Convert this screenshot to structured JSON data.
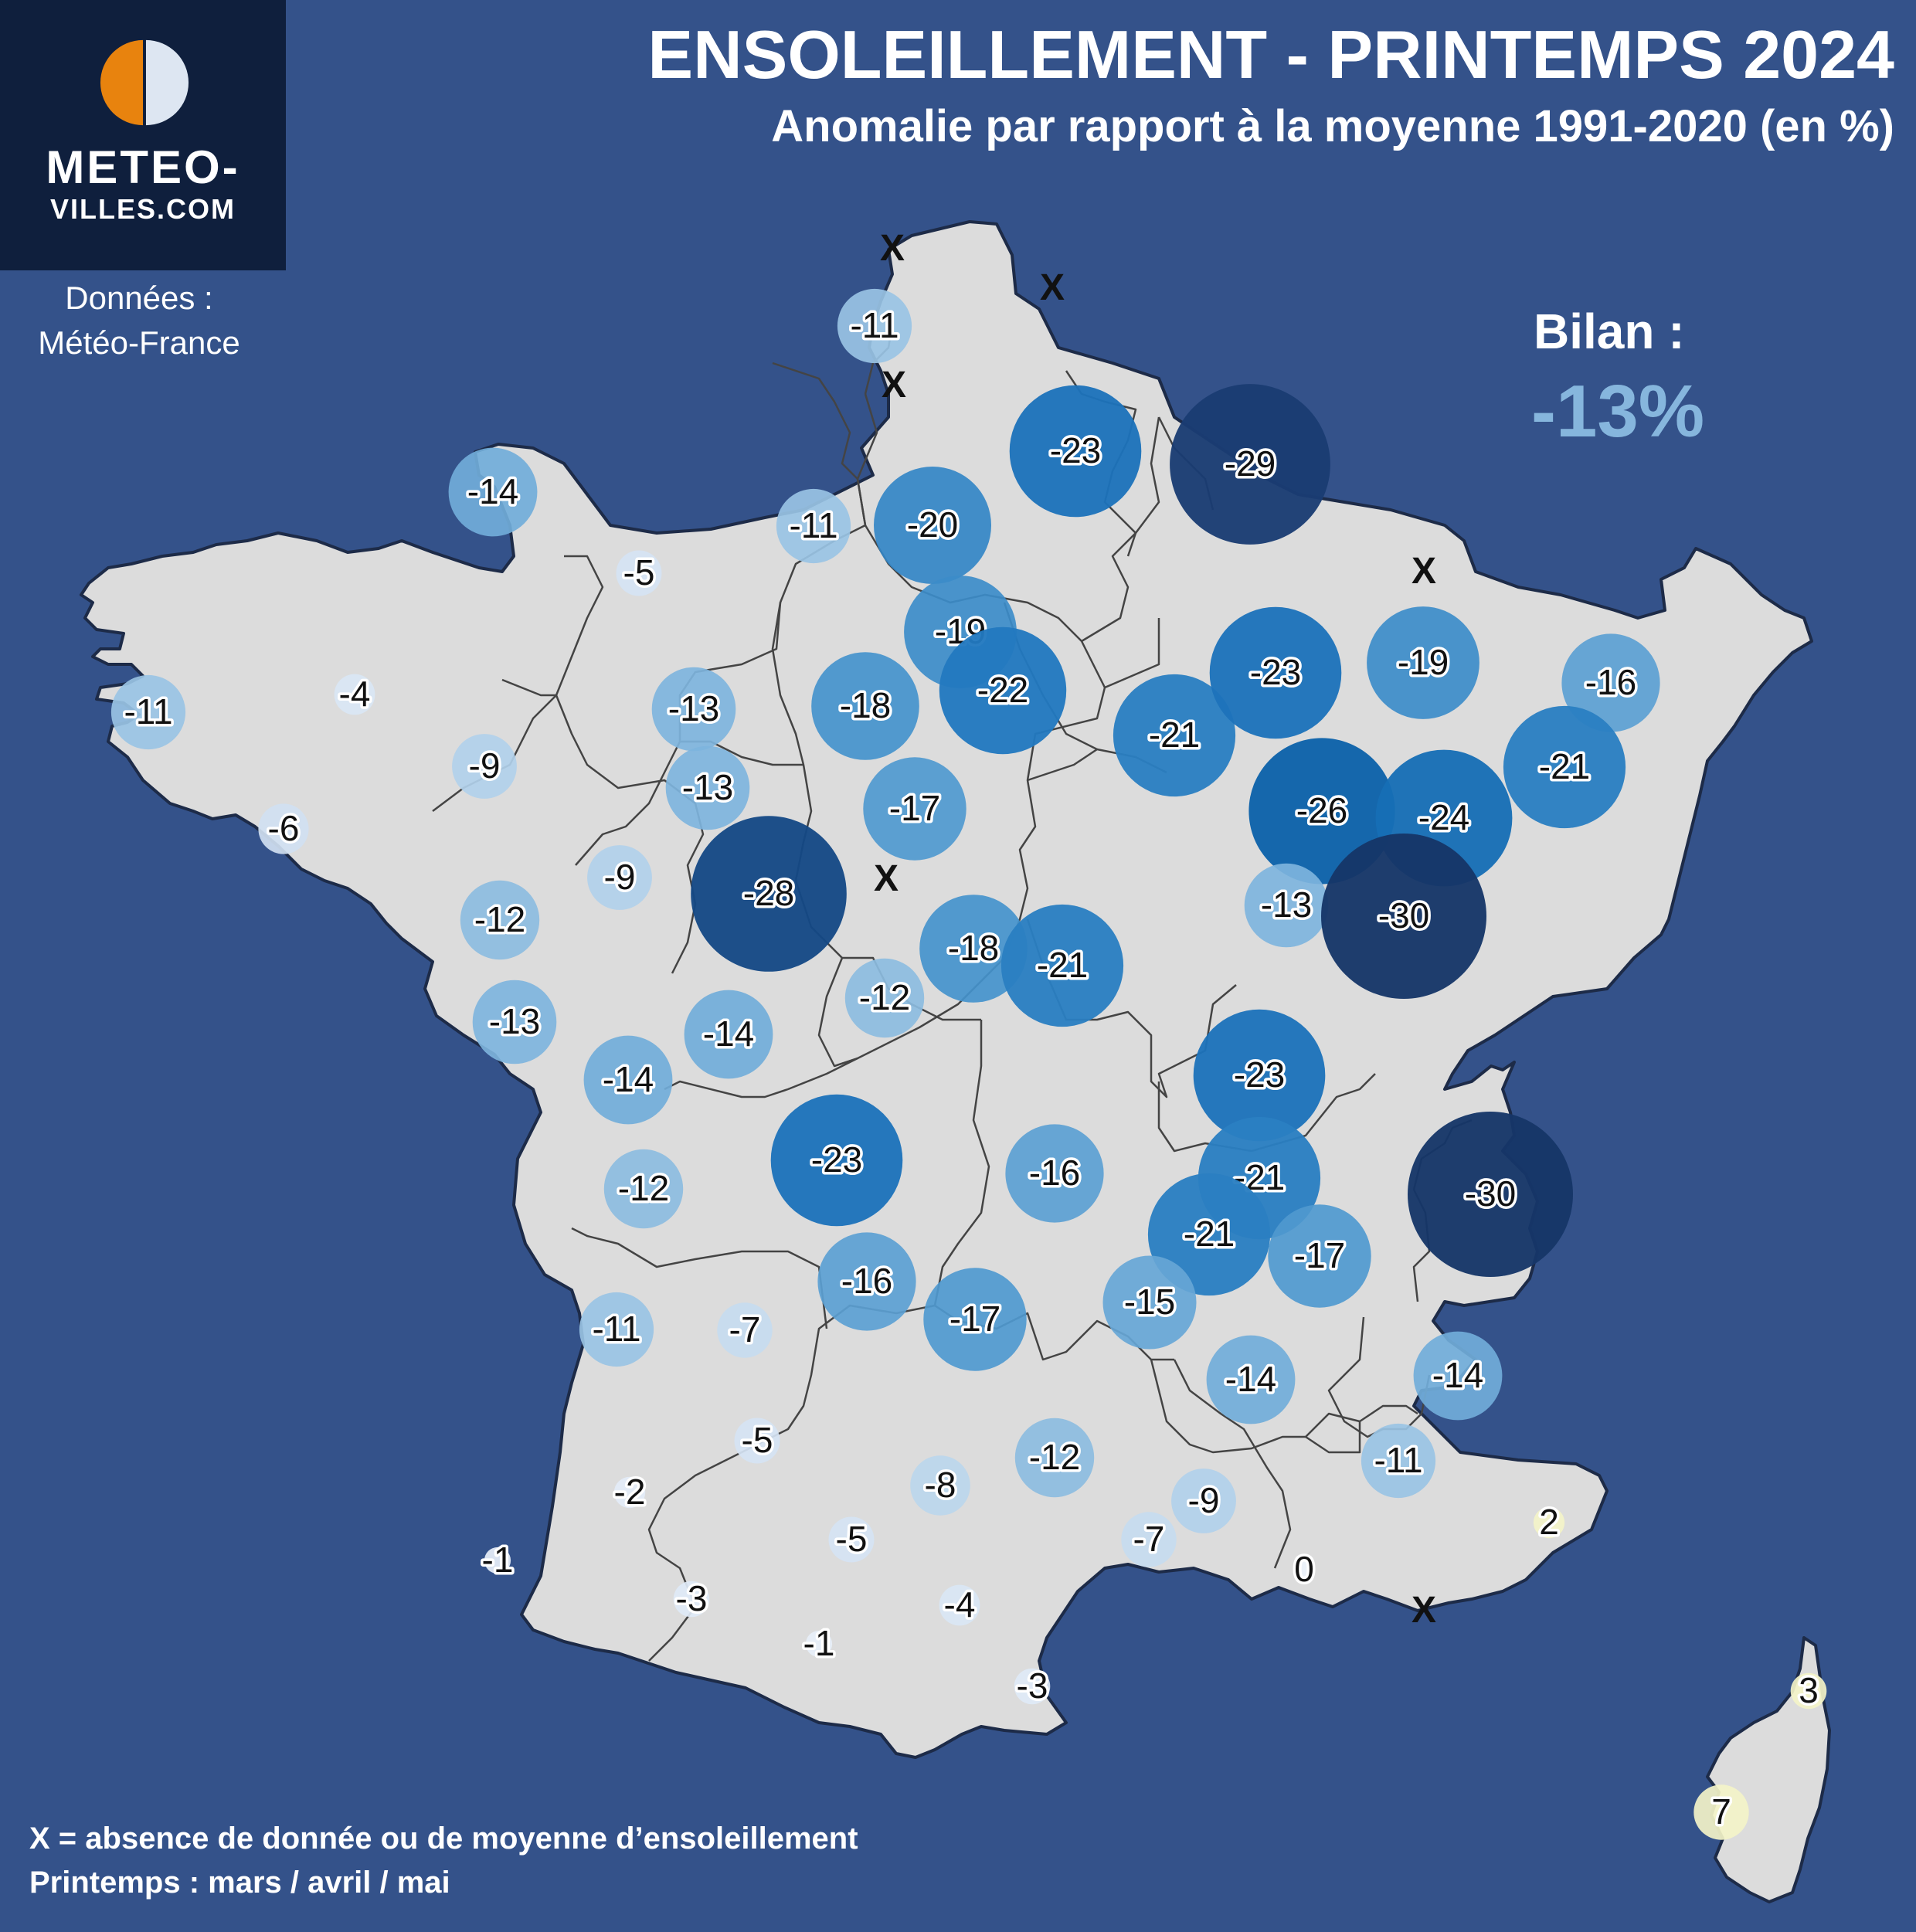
{
  "header": {
    "title": "ENSOLEILLEMENT - PRINTEMPS 2024",
    "subtitle": "Anomalie par rapport à la moyenne 1991-2020 (en %)"
  },
  "logo": {
    "line1": "METEO-",
    "line2": "VILLES.COM",
    "colors": {
      "orange": "#e8830e",
      "white": "#dde6f2",
      "box": "#0f1f3d"
    }
  },
  "source": {
    "line1": "Données :",
    "line2": "Météo-France"
  },
  "summary": {
    "label": "Bilan :",
    "value": "-13%",
    "value_color": "#86b6dd"
  },
  "footer": {
    "missing_note": "X = absence de donnée ou de moyenne d’ensoleillement",
    "season_note": "Printemps : mars / avril / mai"
  },
  "colors": {
    "sea": "#34528a",
    "land": "#dcdcdc",
    "border": "#222222",
    "positive_anomaly": "#f2f2c0",
    "strong_negative": "#193e72"
  },
  "missing_marker": "X",
  "stations": [
    {
      "value": -11
    },
    {
      "value": -14
    },
    {
      "value": -11
    },
    {
      "value": -5
    },
    {
      "value": -20
    },
    {
      "value": -23
    },
    {
      "value": -29
    },
    {
      "value": -19
    },
    {
      "value": -22
    },
    {
      "value": -18
    },
    {
      "value": -13
    },
    {
      "value": -4
    },
    {
      "value": -11
    },
    {
      "value": -9
    },
    {
      "value": -6
    },
    {
      "value": -13
    },
    {
      "value": -17
    },
    {
      "value": -21
    },
    {
      "value": -23
    },
    {
      "value": -19
    },
    {
      "value": -16
    },
    {
      "value": -21
    },
    {
      "value": -26
    },
    {
      "value": -24
    },
    {
      "value": -9
    },
    {
      "value": -12
    },
    {
      "value": -13
    },
    {
      "value": -30
    },
    {
      "value": -28
    },
    {
      "value": -18
    },
    {
      "value": -21
    },
    {
      "value": -12
    },
    {
      "value": -13
    },
    {
      "value": -14
    },
    {
      "value": -14
    },
    {
      "value": -23
    },
    {
      "value": -23
    },
    {
      "value": -16
    },
    {
      "value": -21
    },
    {
      "value": -30
    },
    {
      "value": -12
    },
    {
      "value": -21
    },
    {
      "value": -17
    },
    {
      "value": -16
    },
    {
      "value": -17
    },
    {
      "value": -15
    },
    {
      "value": -11
    },
    {
      "value": -7
    },
    {
      "value": -14
    },
    {
      "value": -14
    },
    {
      "value": -5
    },
    {
      "value": -12
    },
    {
      "value": -11
    },
    {
      "value": -8
    },
    {
      "value": -9
    },
    {
      "value": -2
    },
    {
      "value": -5
    },
    {
      "value": -7
    },
    {
      "value": 2
    },
    {
      "value": -1
    },
    {
      "value": -3
    },
    {
      "value": -4
    },
    {
      "value": 0
    },
    {
      "value": -1
    },
    {
      "value": -3
    },
    {
      "value": 3
    },
    {
      "value": 7
    }
  ]
}
